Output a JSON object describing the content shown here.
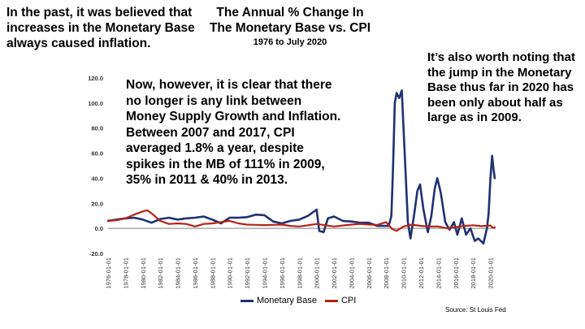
{
  "notes": {
    "left": "In the past, it was believed that increases in the Monetary Base always caused inflation.",
    "middle": "Now, however, it is clear that there no longer is any link between Money Supply Growth and Inflation.  Between 2007 and 2017, CPI averaged 1.8% a year, despite spikes in the MB of 111% in 2009, 35% in 2011 & 40% in 2013.",
    "right": "It’s also worth noting that the jump in the Monetary Base thus far in 2020 has been only about half as large as in 2009."
  },
  "source": "Source: St Louis Fed",
  "colors": {
    "monetary_base": "#1f3170",
    "cpi": "#b52417",
    "axis": "#7f7f7f"
  },
  "chart_data": {
    "type": "line",
    "title": [
      "The Annual % Change In",
      "The Monetary Base vs. CPI"
    ],
    "subtitle": "1976 to July 2020",
    "ylim": [
      -20,
      120
    ],
    "yticks": [
      "-20.0",
      "0.0",
      "20.0",
      "40.0",
      "60.0",
      "80.0",
      "100.0",
      "120.0"
    ],
    "xlim": [
      1976,
      2020.6
    ],
    "xticks": [
      "1976-01-01",
      "1978-01-01",
      "1980-01-01",
      "1982-01-01",
      "1984-01-01",
      "1986-01-01",
      "1988-01-01",
      "1990-01-01",
      "1992-01-01",
      "1994-01-01",
      "1996-01-01",
      "1998-01-01",
      "2000-01-01",
      "2002-01-01",
      "2004-01-01",
      "2006-01-01",
      "2008-01-01",
      "2010-01-01",
      "2012-01-01",
      "2014-01-01",
      "2016-01-01",
      "2018-01-01",
      "2020-01-01"
    ],
    "legend_position": "bottom",
    "series": [
      {
        "name": "Monetary Base",
        "color": "#1f3170",
        "points": [
          [
            1976,
            6
          ],
          [
            1977,
            7
          ],
          [
            1978,
            8
          ],
          [
            1979,
            8.5
          ],
          [
            1980,
            7
          ],
          [
            1981,
            4.5
          ],
          [
            1982,
            7.5
          ],
          [
            1983,
            8.5
          ],
          [
            1984,
            7
          ],
          [
            1985,
            8
          ],
          [
            1986,
            8.5
          ],
          [
            1987,
            9.5
          ],
          [
            1988,
            7
          ],
          [
            1989,
            4
          ],
          [
            1990,
            8.5
          ],
          [
            1991,
            8.5
          ],
          [
            1992,
            9
          ],
          [
            1993,
            11
          ],
          [
            1994,
            10.5
          ],
          [
            1995,
            5.5
          ],
          [
            1996,
            4
          ],
          [
            1997,
            6
          ],
          [
            1998,
            7
          ],
          [
            1999,
            10
          ],
          [
            2000,
            15
          ],
          [
            2000.3,
            -2
          ],
          [
            2000.8,
            -3
          ],
          [
            2001.3,
            8
          ],
          [
            2002,
            9.5
          ],
          [
            2003,
            6
          ],
          [
            2004,
            5.5
          ],
          [
            2005,
            4.5
          ],
          [
            2006,
            4.5
          ],
          [
            2007,
            2
          ],
          [
            2008.3,
            2
          ],
          [
            2008.6,
            10
          ],
          [
            2008.8,
            50
          ],
          [
            2009,
            100
          ],
          [
            2009.2,
            108
          ],
          [
            2009.5,
            104
          ],
          [
            2009.8,
            110
          ],
          [
            2010.2,
            50
          ],
          [
            2010.5,
            5
          ],
          [
            2010.8,
            -8
          ],
          [
            2011.2,
            10
          ],
          [
            2011.6,
            30
          ],
          [
            2011.9,
            35
          ],
          [
            2012.3,
            15
          ],
          [
            2012.8,
            -3
          ],
          [
            2013.2,
            10
          ],
          [
            2013.6,
            32
          ],
          [
            2013.9,
            40
          ],
          [
            2014.3,
            28
          ],
          [
            2014.8,
            5
          ],
          [
            2015.3,
            -1
          ],
          [
            2015.8,
            5
          ],
          [
            2016.2,
            -5
          ],
          [
            2016.7,
            8
          ],
          [
            2017.2,
            -5
          ],
          [
            2017.7,
            0
          ],
          [
            2018.2,
            -10
          ],
          [
            2018.6,
            -8
          ],
          [
            2019.2,
            -12
          ],
          [
            2019.6,
            0
          ],
          [
            2019.8,
            12
          ],
          [
            2020,
            40
          ],
          [
            2020.2,
            58
          ],
          [
            2020.35,
            48
          ],
          [
            2020.5,
            40
          ]
        ]
      },
      {
        "name": "CPI",
        "color": "#b52417",
        "points": [
          [
            1976,
            6
          ],
          [
            1977,
            6.5
          ],
          [
            1978,
            8
          ],
          [
            1979,
            11
          ],
          [
            1980,
            13.5
          ],
          [
            1980.5,
            14.5
          ],
          [
            1981,
            12
          ],
          [
            1982,
            6
          ],
          [
            1983,
            3.5
          ],
          [
            1984,
            4
          ],
          [
            1985,
            3.5
          ],
          [
            1986,
            1.5
          ],
          [
            1987,
            3.5
          ],
          [
            1988,
            4
          ],
          [
            1989,
            5
          ],
          [
            1990,
            6
          ],
          [
            1991,
            4
          ],
          [
            1992,
            3
          ],
          [
            1993,
            2.8
          ],
          [
            1994,
            2.6
          ],
          [
            1995,
            2.8
          ],
          [
            1996,
            3
          ],
          [
            1997,
            2
          ],
          [
            1998,
            1.5
          ],
          [
            1999,
            2.5
          ],
          [
            2000,
            3.5
          ],
          [
            2001,
            2.5
          ],
          [
            2002,
            1.5
          ],
          [
            2003,
            2.3
          ],
          [
            2004,
            3
          ],
          [
            2005,
            3.5
          ],
          [
            2006,
            3
          ],
          [
            2007,
            2.8
          ],
          [
            2008,
            5
          ],
          [
            2008.7,
            -0.5
          ],
          [
            2009.2,
            -2
          ],
          [
            2010,
            1.5
          ],
          [
            2011,
            3
          ],
          [
            2012,
            2
          ],
          [
            2013,
            1.5
          ],
          [
            2014,
            1.5
          ],
          [
            2015,
            0
          ],
          [
            2016,
            1
          ],
          [
            2017,
            2
          ],
          [
            2018,
            2.5
          ],
          [
            2019,
            1.8
          ],
          [
            2020,
            2.3
          ],
          [
            2020.3,
            0.3
          ],
          [
            2020.5,
            1
          ]
        ]
      }
    ]
  }
}
